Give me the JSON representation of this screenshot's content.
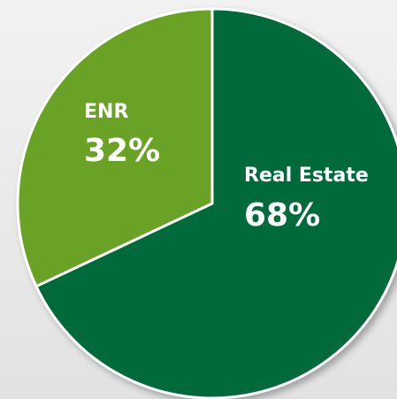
{
  "chart_data": {
    "type": "pie",
    "categories": [
      "Real Estate",
      "ENR"
    ],
    "values": [
      68,
      32
    ],
    "value_labels": [
      "68%",
      "32%"
    ],
    "colors": [
      "#046a3a",
      "#6aa227"
    ]
  }
}
